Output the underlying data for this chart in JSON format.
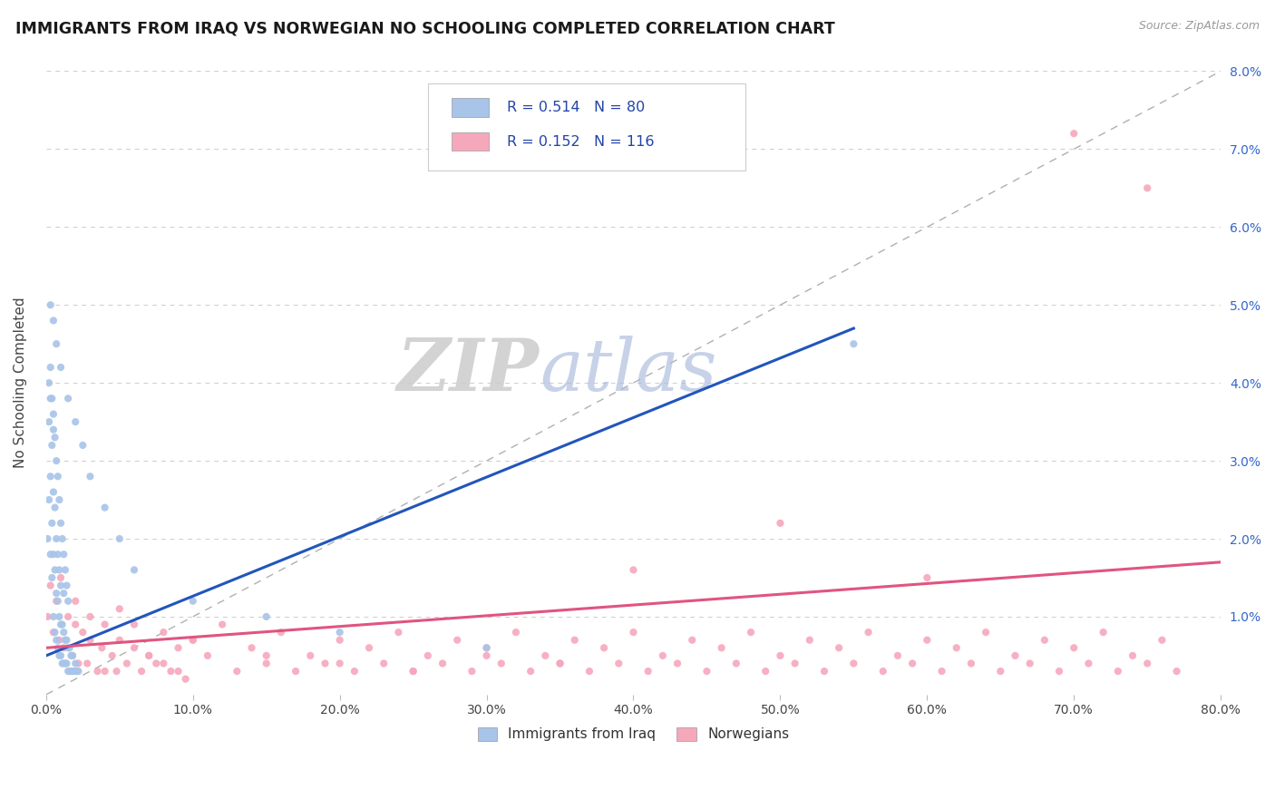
{
  "title": "IMMIGRANTS FROM IRAQ VS NORWEGIAN NO SCHOOLING COMPLETED CORRELATION CHART",
  "source": "Source: ZipAtlas.com",
  "ylabel": "No Schooling Completed",
  "xlim": [
    0.0,
    0.8
  ],
  "ylim": [
    0.0,
    0.08
  ],
  "xticks": [
    0.0,
    0.1,
    0.2,
    0.3,
    0.4,
    0.5,
    0.6,
    0.7,
    0.8
  ],
  "yticks": [
    0.0,
    0.01,
    0.02,
    0.03,
    0.04,
    0.05,
    0.06,
    0.07,
    0.08
  ],
  "blue_R": 0.514,
  "blue_N": 80,
  "pink_R": 0.152,
  "pink_N": 116,
  "blue_color": "#a8c4e8",
  "pink_color": "#f5a8bc",
  "blue_line_color": "#2255bb",
  "pink_line_color": "#e05580",
  "legend_blue_label": "Immigrants from Iraq",
  "legend_pink_label": "Norwegians",
  "blue_trend": [
    0.0,
    0.005,
    0.55,
    0.047
  ],
  "pink_trend": [
    0.0,
    0.006,
    0.8,
    0.017
  ],
  "diag_line": [
    0.0,
    0.0,
    0.8,
    0.08
  ],
  "blue_scatter_x": [
    0.001,
    0.002,
    0.002,
    0.003,
    0.003,
    0.003,
    0.004,
    0.004,
    0.004,
    0.005,
    0.005,
    0.005,
    0.005,
    0.006,
    0.006,
    0.006,
    0.007,
    0.007,
    0.007,
    0.008,
    0.008,
    0.008,
    0.009,
    0.009,
    0.009,
    0.01,
    0.01,
    0.01,
    0.011,
    0.011,
    0.012,
    0.012,
    0.012,
    0.013,
    0.013,
    0.014,
    0.014,
    0.015,
    0.015,
    0.016,
    0.016,
    0.017,
    0.017,
    0.018,
    0.018,
    0.019,
    0.02,
    0.02,
    0.021,
    0.022,
    0.002,
    0.003,
    0.004,
    0.005,
    0.006,
    0.007,
    0.008,
    0.009,
    0.01,
    0.011,
    0.012,
    0.013,
    0.014,
    0.015,
    0.003,
    0.005,
    0.007,
    0.01,
    0.015,
    0.02,
    0.025,
    0.03,
    0.04,
    0.05,
    0.06,
    0.1,
    0.15,
    0.2,
    0.3,
    0.55
  ],
  "blue_scatter_y": [
    0.02,
    0.025,
    0.035,
    0.018,
    0.028,
    0.038,
    0.015,
    0.022,
    0.032,
    0.01,
    0.018,
    0.026,
    0.034,
    0.008,
    0.016,
    0.024,
    0.007,
    0.013,
    0.02,
    0.006,
    0.012,
    0.018,
    0.005,
    0.01,
    0.016,
    0.005,
    0.009,
    0.014,
    0.004,
    0.009,
    0.004,
    0.008,
    0.013,
    0.004,
    0.007,
    0.004,
    0.007,
    0.003,
    0.006,
    0.003,
    0.006,
    0.003,
    0.005,
    0.003,
    0.005,
    0.003,
    0.003,
    0.004,
    0.003,
    0.003,
    0.04,
    0.042,
    0.038,
    0.036,
    0.033,
    0.03,
    0.028,
    0.025,
    0.022,
    0.02,
    0.018,
    0.016,
    0.014,
    0.012,
    0.05,
    0.048,
    0.045,
    0.042,
    0.038,
    0.035,
    0.032,
    0.028,
    0.024,
    0.02,
    0.016,
    0.012,
    0.01,
    0.008,
    0.006,
    0.045
  ],
  "pink_scatter_x": [
    0.001,
    0.003,
    0.005,
    0.007,
    0.009,
    0.01,
    0.012,
    0.015,
    0.018,
    0.02,
    0.022,
    0.025,
    0.028,
    0.03,
    0.035,
    0.038,
    0.04,
    0.045,
    0.048,
    0.05,
    0.055,
    0.06,
    0.065,
    0.07,
    0.075,
    0.08,
    0.085,
    0.09,
    0.095,
    0.1,
    0.11,
    0.12,
    0.13,
    0.14,
    0.15,
    0.16,
    0.17,
    0.18,
    0.19,
    0.2,
    0.21,
    0.22,
    0.23,
    0.24,
    0.25,
    0.26,
    0.27,
    0.28,
    0.29,
    0.3,
    0.31,
    0.32,
    0.33,
    0.34,
    0.35,
    0.36,
    0.37,
    0.38,
    0.39,
    0.4,
    0.41,
    0.42,
    0.43,
    0.44,
    0.45,
    0.46,
    0.47,
    0.48,
    0.49,
    0.5,
    0.51,
    0.52,
    0.53,
    0.54,
    0.55,
    0.56,
    0.57,
    0.58,
    0.59,
    0.6,
    0.61,
    0.62,
    0.63,
    0.64,
    0.65,
    0.66,
    0.67,
    0.68,
    0.69,
    0.7,
    0.71,
    0.72,
    0.73,
    0.74,
    0.75,
    0.76,
    0.77,
    0.4,
    0.5,
    0.6,
    0.02,
    0.03,
    0.04,
    0.05,
    0.06,
    0.07,
    0.08,
    0.09,
    0.1,
    0.15,
    0.2,
    0.25,
    0.3,
    0.35,
    0.7,
    0.75
  ],
  "pink_scatter_y": [
    0.01,
    0.014,
    0.008,
    0.012,
    0.007,
    0.015,
    0.006,
    0.01,
    0.005,
    0.009,
    0.004,
    0.008,
    0.004,
    0.007,
    0.003,
    0.006,
    0.003,
    0.005,
    0.003,
    0.007,
    0.004,
    0.009,
    0.003,
    0.005,
    0.004,
    0.008,
    0.003,
    0.006,
    0.002,
    0.007,
    0.005,
    0.009,
    0.003,
    0.006,
    0.004,
    0.008,
    0.003,
    0.005,
    0.004,
    0.007,
    0.003,
    0.006,
    0.004,
    0.008,
    0.003,
    0.005,
    0.004,
    0.007,
    0.003,
    0.006,
    0.004,
    0.008,
    0.003,
    0.005,
    0.004,
    0.007,
    0.003,
    0.006,
    0.004,
    0.008,
    0.003,
    0.005,
    0.004,
    0.007,
    0.003,
    0.006,
    0.004,
    0.008,
    0.003,
    0.005,
    0.004,
    0.007,
    0.003,
    0.006,
    0.004,
    0.008,
    0.003,
    0.005,
    0.004,
    0.007,
    0.003,
    0.006,
    0.004,
    0.008,
    0.003,
    0.005,
    0.004,
    0.007,
    0.003,
    0.006,
    0.004,
    0.008,
    0.003,
    0.005,
    0.004,
    0.007,
    0.003,
    0.016,
    0.022,
    0.015,
    0.012,
    0.01,
    0.009,
    0.011,
    0.006,
    0.005,
    0.004,
    0.003,
    0.007,
    0.005,
    0.004,
    0.003,
    0.005,
    0.004,
    0.072,
    0.065
  ]
}
